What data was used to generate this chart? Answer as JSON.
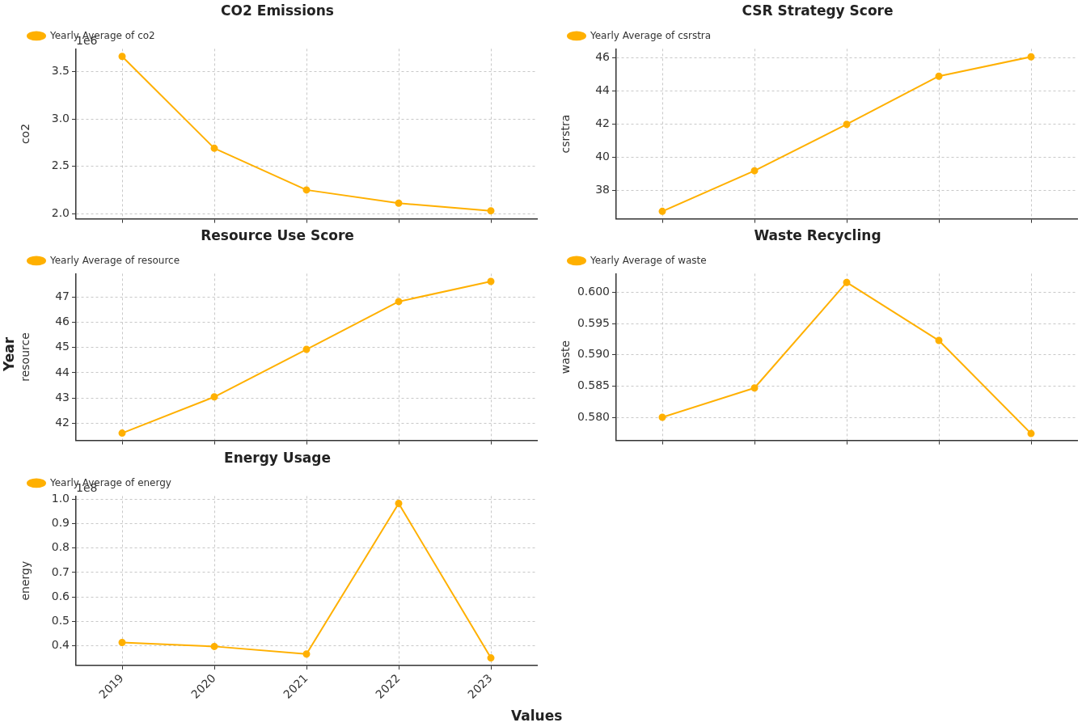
{
  "chart_data": [
    {
      "type": "line",
      "title": "CO2 Emissions",
      "ylabel": "co2",
      "categories": [
        "2019",
        "2020",
        "2021",
        "2022",
        "2023"
      ],
      "series": [
        {
          "name": "Yearly Average of co2",
          "color": "#ffb000",
          "values": [
            3.66,
            2.69,
            2.25,
            2.11,
            2.03
          ]
        }
      ],
      "ylim": [
        1.945,
        3.74
      ],
      "yticks": [
        {
          "value": 2,
          "label": "2.0"
        },
        2.5,
        {
          "value": 3,
          "label": "3.0"
        },
        3.5
      ],
      "grid": true,
      "legend": "top left",
      "marker": "circle",
      "tick_labels": "y",
      "annotations": [
        "1e6"
      ]
    },
    {
      "type": "line",
      "title": "CSR Strategy Score",
      "ylabel": "csrstra",
      "categories": [
        null,
        null,
        null,
        null,
        null
      ],
      "series": [
        {
          "name": "Yearly Average of csrstra",
          "color": "#ffb000",
          "values": [
            36.75,
            39.2,
            42.0,
            44.9,
            46.07
          ]
        }
      ],
      "ylim": [
        36.3,
        46.55
      ],
      "yticks": [
        38,
        40,
        42,
        44,
        46
      ],
      "grid": true,
      "legend": "top left",
      "marker": "circle",
      "tick_labels": "y"
    },
    {
      "type": "line",
      "title": "Resource Use Score",
      "ylabel": "resource",
      "categories": [
        "2019",
        "2020",
        "2021",
        "2022",
        "2023"
      ],
      "series": [
        {
          "name": "Yearly Average of resource",
          "color": "#ffb000",
          "values": [
            41.6,
            43.04,
            44.93,
            46.83,
            47.63
          ]
        }
      ],
      "ylim": [
        41.31,
        47.94
      ],
      "yticks": [
        42,
        43,
        44,
        45,
        46,
        47
      ],
      "grid": true,
      "legend": "top left",
      "marker": "circle",
      "tick_labels": "y",
      "annotations": [
        "Year"
      ]
    },
    {
      "type": "line",
      "title": "Waste Recycling",
      "ylabel": "waste",
      "categories": [
        null,
        null,
        null,
        null,
        null
      ],
      "series": [
        {
          "name": "Yearly Average of waste",
          "color": "#ffb000",
          "values": [
            0.58,
            0.5847,
            0.6016,
            0.5923,
            0.5774
          ]
        }
      ],
      "ylim": [
        0.5763,
        0.603
      ],
      "yticks": [
        {
          "value": 0.58,
          "label": "0.580"
        },
        {
          "value": 0.585,
          "label": "0.585"
        },
        {
          "value": 0.59,
          "label": "0.590"
        },
        {
          "value": 0.595,
          "label": "0.595"
        },
        {
          "value": 0.6,
          "label": "0.600"
        }
      ],
      "grid": true,
      "legend": "top left",
      "marker": "circle",
      "tick_labels": "y"
    },
    {
      "type": "line",
      "title": "Energy Usage",
      "ylabel": "energy",
      "xlabel": "Values",
      "categories": [
        "2019",
        "2020",
        "2021",
        "2022",
        "2023"
      ],
      "series": [
        {
          "name": "Yearly Average of energy",
          "color": "#ffb000",
          "values": [
            0.413,
            0.397,
            0.366,
            0.983,
            0.35
          ]
        }
      ],
      "ylim": [
        0.319,
        1.013
      ],
      "yticks": [
        0.4,
        0.5,
        0.6,
        0.7,
        0.8,
        0.9,
        {
          "value": 1.0,
          "label": "1.0"
        }
      ],
      "grid": true,
      "legend": "top left",
      "marker": "circle",
      "annotations": [
        "1e8"
      ]
    }
  ]
}
